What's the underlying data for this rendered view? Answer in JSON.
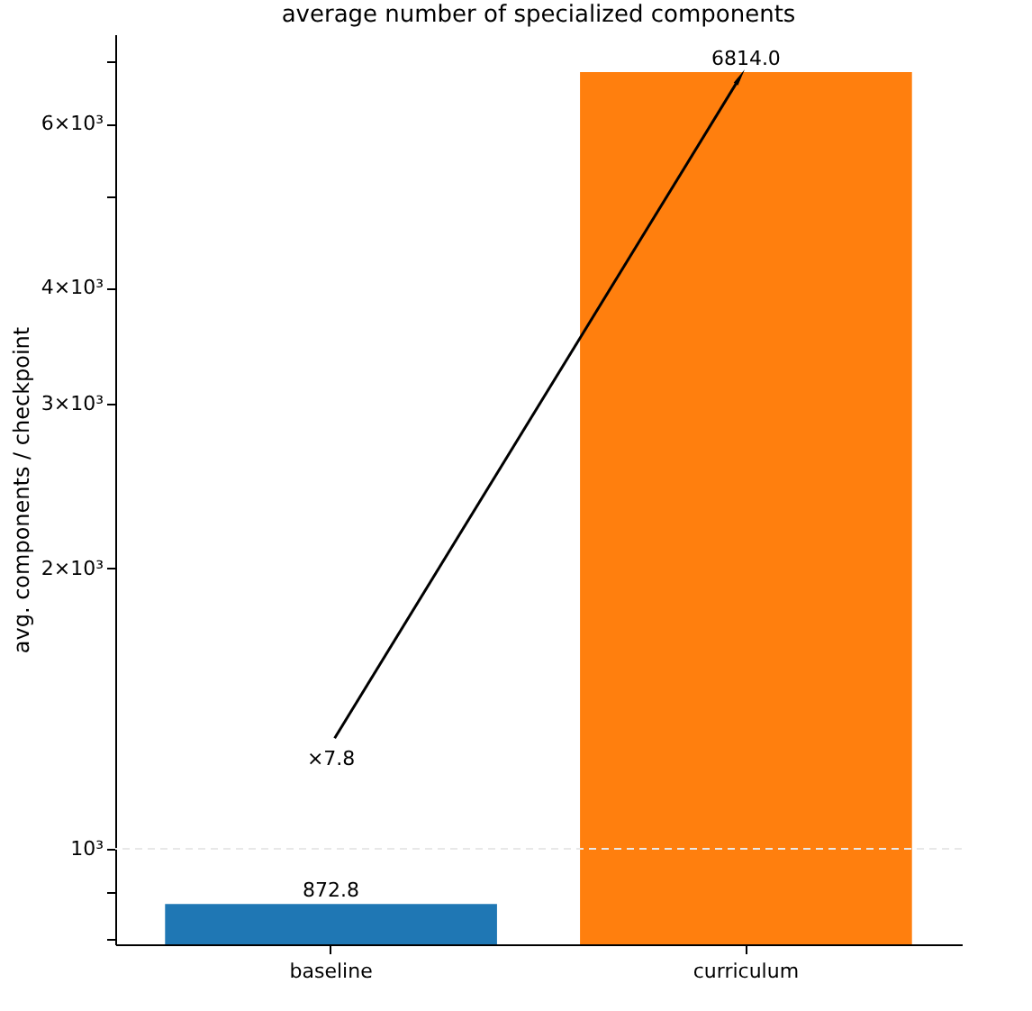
{
  "chart_data": {
    "type": "bar",
    "title": "average number of specialized components",
    "ylabel": "avg. components / checkpoint",
    "categories": [
      "baseline",
      "curriculum"
    ],
    "series": [
      {
        "colors": [
          "#1f77b4",
          "#ff7f0e"
        ],
        "values": [
          872.8,
          6814.0
        ],
        "value_labels": [
          "872.8",
          "6814.0"
        ]
      }
    ],
    "log": true,
    "ylim": [
      790,
      7480
    ],
    "yticks": [
      {
        "value": 800,
        "label": null
      },
      {
        "value": 900,
        "label": null
      },
      {
        "value": 1000,
        "label": "10³"
      },
      {
        "value": 2000,
        "label": "2×10³"
      },
      {
        "value": 3000,
        "label": "3×10³"
      },
      {
        "value": 4000,
        "label": "4×10³"
      },
      {
        "value": 5000,
        "label": null
      },
      {
        "value": 6000,
        "label": "6×10³"
      },
      {
        "value": 7000,
        "label": null
      }
    ],
    "ref_lines": [
      {
        "axis": "y",
        "value": 1000,
        "label": null,
        "color": "#e8e8e8",
        "line_style": "dashed"
      }
    ],
    "annotations": [
      "×7.8"
    ],
    "grid": false
  }
}
